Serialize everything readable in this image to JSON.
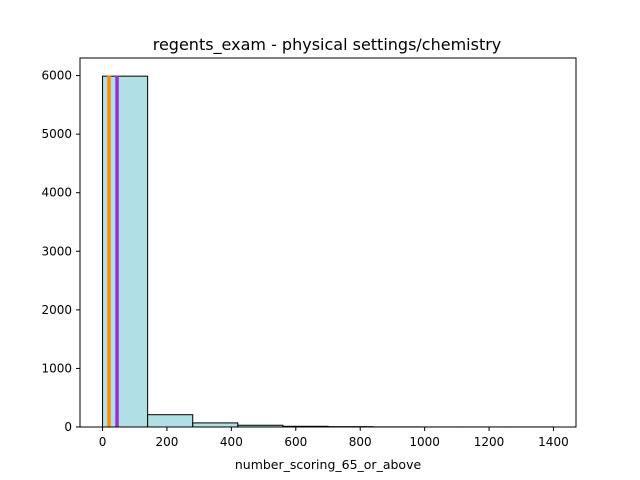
{
  "chart_data": {
    "type": "bar",
    "subtype": "histogram",
    "title": "regents_exam - physical settings/chemistry",
    "xlabel": "number_scoring_65_or_above",
    "ylabel": "",
    "xlim": [
      -70,
      1470
    ],
    "ylim": [
      0,
      6300
    ],
    "xticks": [
      0,
      200,
      400,
      600,
      800,
      1000,
      1200,
      1400
    ],
    "xtick_labels": [
      "0",
      "200",
      "400",
      "600",
      "800",
      "1000",
      "1200",
      "1400"
    ],
    "yticks": [
      0,
      1000,
      2000,
      3000,
      4000,
      5000,
      6000
    ],
    "ytick_labels": [
      "0",
      "1000",
      "2000",
      "3000",
      "4000",
      "5000",
      "6000"
    ],
    "bins": [
      {
        "x0": 0,
        "x1": 140,
        "count": 5990
      },
      {
        "x0": 140,
        "x1": 280,
        "count": 210
      },
      {
        "x0": 280,
        "x1": 420,
        "count": 70
      },
      {
        "x0": 420,
        "x1": 560,
        "count": 30
      },
      {
        "x0": 560,
        "x1": 700,
        "count": 12
      },
      {
        "x0": 700,
        "x1": 840,
        "count": 6
      },
      {
        "x0": 840,
        "x1": 980,
        "count": 2
      },
      {
        "x0": 980,
        "x1": 1120,
        "count": 1
      },
      {
        "x0": 1120,
        "x1": 1260,
        "count": 1
      },
      {
        "x0": 1260,
        "x1": 1400,
        "count": 1
      }
    ],
    "vlines": [
      {
        "x": 20,
        "color": "#ff8c00"
      },
      {
        "x": 45,
        "color": "#9932cc"
      }
    ],
    "bar_color": "#b0e0e6",
    "bar_edge_color": "#000000",
    "grid": false,
    "legend": false
  }
}
